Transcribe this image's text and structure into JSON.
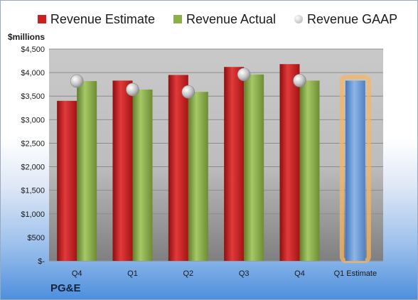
{
  "chart_data": {
    "type": "bar",
    "ylabel": "$millions",
    "company": "PG&E",
    "categories": [
      "Q4",
      "Q1",
      "Q2",
      "Q3",
      "Q4",
      "Q1 Estimate"
    ],
    "ylim": [
      0,
      4500
    ],
    "yticks": [
      {
        "value": 0,
        "label": "$-"
      },
      {
        "value": 500,
        "label": "$500"
      },
      {
        "value": 1000,
        "label": "$1,000"
      },
      {
        "value": 1500,
        "label": "$1,500"
      },
      {
        "value": 2000,
        "label": "$2,000"
      },
      {
        "value": 2500,
        "label": "$2,500"
      },
      {
        "value": 3000,
        "label": "$3,000"
      },
      {
        "value": 3500,
        "label": "$3,500"
      },
      {
        "value": 4000,
        "label": "$4,000"
      },
      {
        "value": 4500,
        "label": "$4,500"
      }
    ],
    "grid": true,
    "legend_position": "top",
    "series": [
      {
        "name": "Revenue Estimate",
        "color": "#cc1f1f",
        "values": [
          3400,
          3830,
          3950,
          4120,
          4180,
          null
        ]
      },
      {
        "name": "Revenue Actual",
        "color": "#8bb04a",
        "values": [
          3820,
          3640,
          3590,
          3960,
          3830,
          null
        ]
      },
      {
        "name": "Revenue GAAP",
        "color": "#bfbfbf",
        "values": [
          3820,
          3640,
          3590,
          3960,
          3830,
          null
        ]
      }
    ],
    "estimate": {
      "category": "Q1 Estimate",
      "value": 3830,
      "color": "#6a9ad6",
      "glow": "#f5b461"
    }
  }
}
